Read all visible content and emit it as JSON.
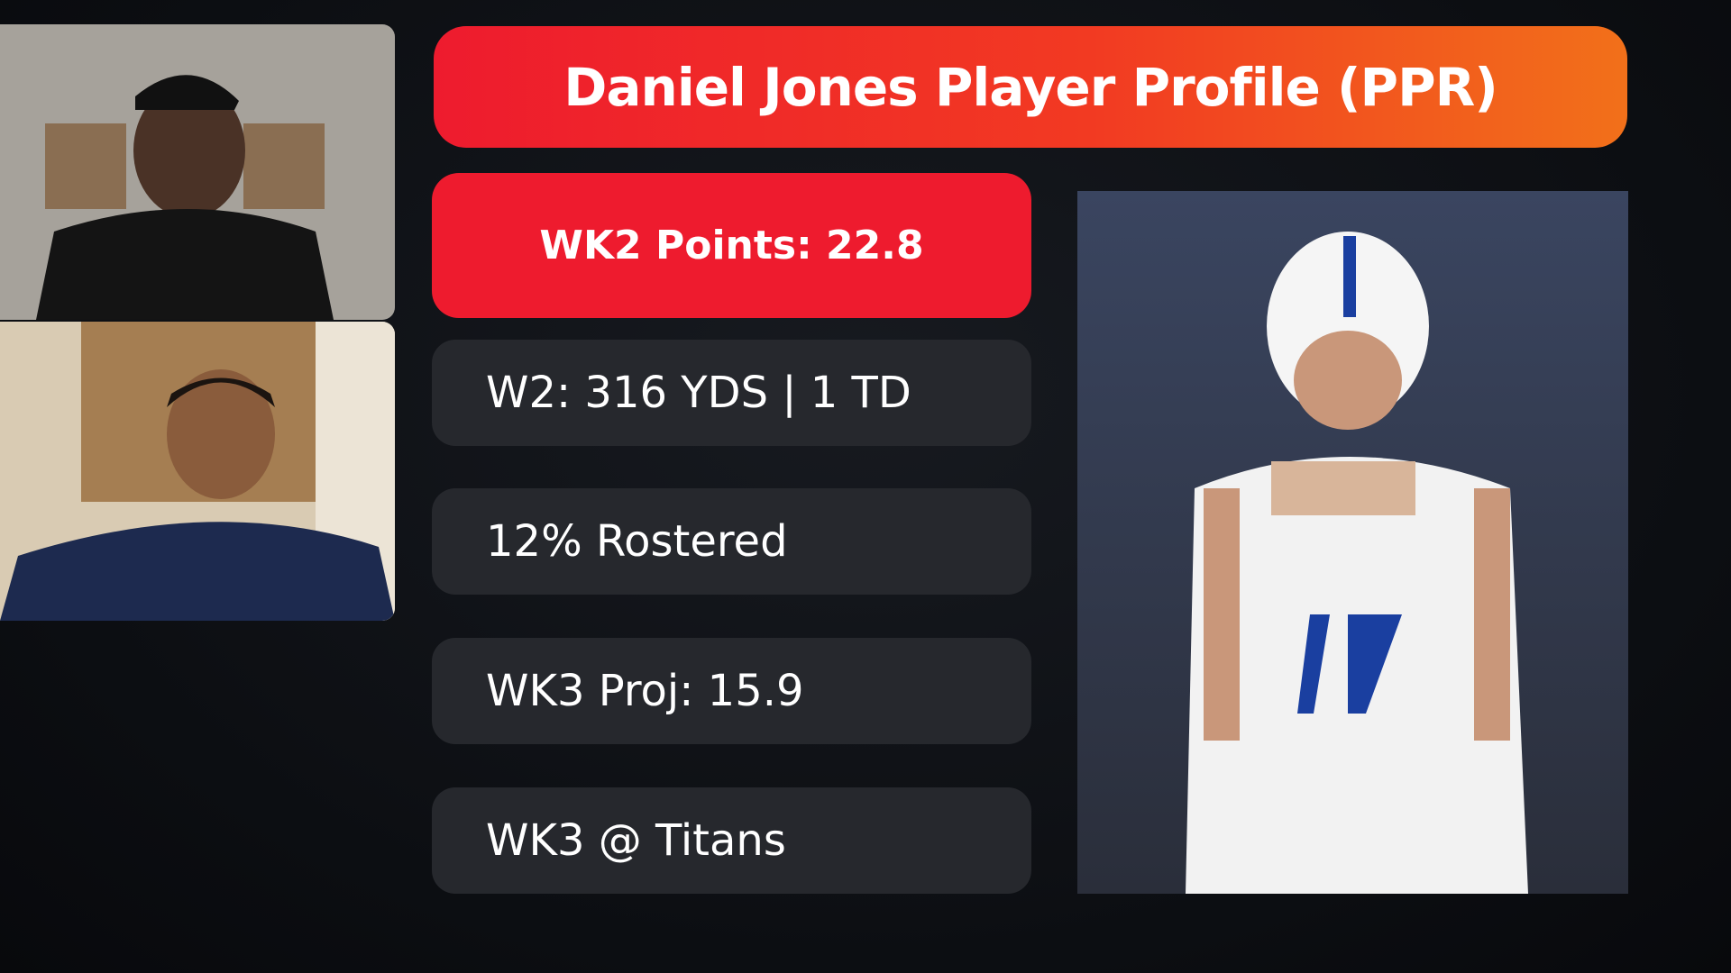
{
  "header": {
    "title": "Daniel Jones Player Profile (PPR)"
  },
  "highlight": "WK2 Points: 22.8",
  "stats": [
    "W2: 316 YDS | 1 TD",
    "12% Rostered",
    "WK3 Proj: 15.9",
    "WK3 @ Titans"
  ]
}
